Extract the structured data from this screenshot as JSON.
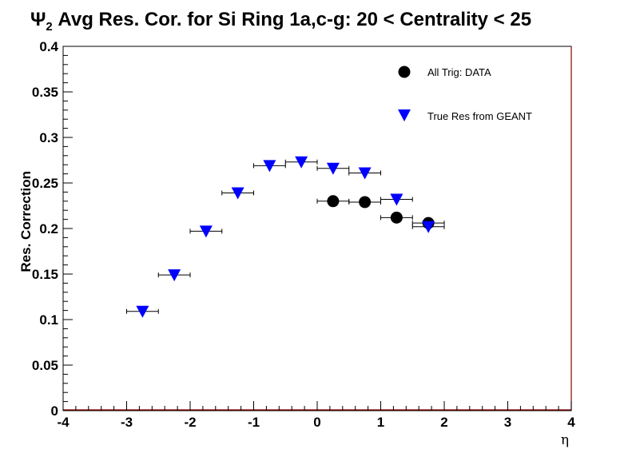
{
  "title": {
    "psi": "Ψ",
    "sub": "2",
    "text": " Avg Res. Cor. for Si Ring 1a,c-g: 20 < Centrality < 25"
  },
  "chart_data": {
    "type": "scatter",
    "xlabel": "η",
    "ylabel": "Res. Correction",
    "xlim": [
      -4,
      4
    ],
    "ylim": [
      0,
      0.4
    ],
    "x_ticks": [
      "-4",
      "-3",
      "-2",
      "-1",
      "0",
      "1",
      "2",
      "3",
      "4"
    ],
    "y_ticks": [
      "0",
      "0.05",
      "0.1",
      "0.15",
      "0.2",
      "0.25",
      "0.3",
      "0.35",
      "0.4"
    ],
    "legend_position": "top-right",
    "series": [
      {
        "name": "All Trig: DATA",
        "marker": "circle",
        "color": "#000000",
        "points": [
          {
            "x": 0.25,
            "y": 0.23,
            "xerr": 0.25,
            "yerr": 0.002
          },
          {
            "x": 0.75,
            "y": 0.229,
            "xerr": 0.25,
            "yerr": 0.002
          },
          {
            "x": 1.25,
            "y": 0.212,
            "xerr": 0.25,
            "yerr": 0.003
          },
          {
            "x": 1.75,
            "y": 0.206,
            "xerr": 0.25,
            "yerr": 0.006
          }
        ]
      },
      {
        "name": "True Res from GEANT",
        "marker": "triangle-down",
        "color": "#0000ff",
        "points": [
          {
            "x": -2.75,
            "y": 0.109,
            "xerr": 0.25,
            "yerr": 0.001
          },
          {
            "x": -2.25,
            "y": 0.149,
            "xerr": 0.25,
            "yerr": 0.001
          },
          {
            "x": -1.75,
            "y": 0.197,
            "xerr": 0.25,
            "yerr": 0.001
          },
          {
            "x": -1.25,
            "y": 0.239,
            "xerr": 0.25,
            "yerr": 0.001
          },
          {
            "x": -0.75,
            "y": 0.269,
            "xerr": 0.25,
            "yerr": 0.001
          },
          {
            "x": -0.25,
            "y": 0.273,
            "xerr": 0.25,
            "yerr": 0.001
          },
          {
            "x": 0.25,
            "y": 0.266,
            "xerr": 0.25,
            "yerr": 0.001
          },
          {
            "x": 0.75,
            "y": 0.261,
            "xerr": 0.25,
            "yerr": 0.001
          },
          {
            "x": 1.25,
            "y": 0.232,
            "xerr": 0.25,
            "yerr": 0.001
          },
          {
            "x": 1.75,
            "y": 0.202,
            "xerr": 0.25,
            "yerr": 0.001
          }
        ]
      }
    ]
  }
}
